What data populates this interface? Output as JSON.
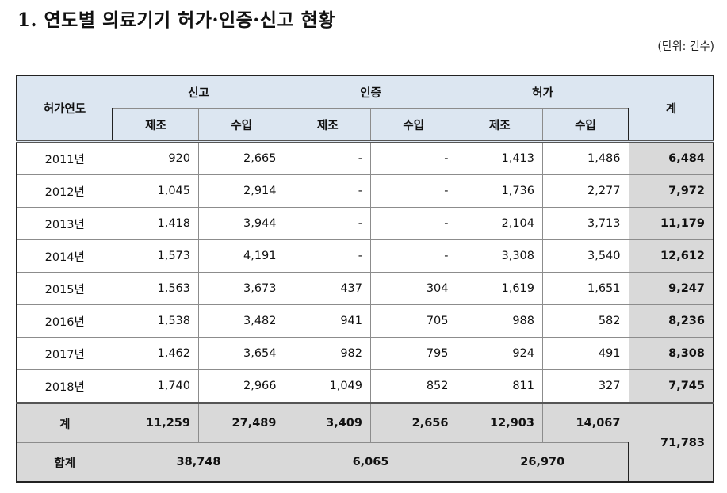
{
  "title": "1. 연도별 의료기기 허가·인증·신고 현황",
  "unit": "(단위: 건수)",
  "header": {
    "year_col": "허가연도",
    "group_1": "신고",
    "group_2": "인증",
    "group_3": "허가",
    "total_col": "계",
    "sub_make": "제조",
    "sub_import": "수입"
  },
  "rows": [
    {
      "year": "2011년",
      "v": [
        "920",
        "2,665",
        "-",
        "-",
        "1,413",
        "1,486"
      ],
      "total": "6,484"
    },
    {
      "year": "2012년",
      "v": [
        "1,045",
        "2,914",
        "-",
        "-",
        "1,736",
        "2,277"
      ],
      "total": "7,972"
    },
    {
      "year": "2013년",
      "v": [
        "1,418",
        "3,944",
        "-",
        "-",
        "2,104",
        "3,713"
      ],
      "total": "11,179"
    },
    {
      "year": "2014년",
      "v": [
        "1,573",
        "4,191",
        "-",
        "-",
        "3,308",
        "3,540"
      ],
      "total": "12,612"
    },
    {
      "year": "2015년",
      "v": [
        "1,563",
        "3,673",
        "437",
        "304",
        "1,619",
        "1,651"
      ],
      "total": "9,247"
    },
    {
      "year": "2016년",
      "v": [
        "1,538",
        "3,482",
        "941",
        "705",
        "988",
        "582"
      ],
      "total": "8,236"
    },
    {
      "year": "2017년",
      "v": [
        "1,462",
        "3,654",
        "982",
        "795",
        "924",
        "491"
      ],
      "total": "8,308"
    },
    {
      "year": "2018년",
      "v": [
        "1,740",
        "2,966",
        "1,049",
        "852",
        "811",
        "327"
      ],
      "total": "7,745"
    }
  ],
  "sum_row": {
    "label": "계",
    "v": [
      "11,259",
      "27,489",
      "3,409",
      "2,656",
      "12,903",
      "14,067"
    ]
  },
  "grand_row": {
    "label": "합계",
    "group_1": "38,748",
    "group_2": "6,065",
    "group_3": "26,970"
  },
  "grand_total": "71,783"
}
